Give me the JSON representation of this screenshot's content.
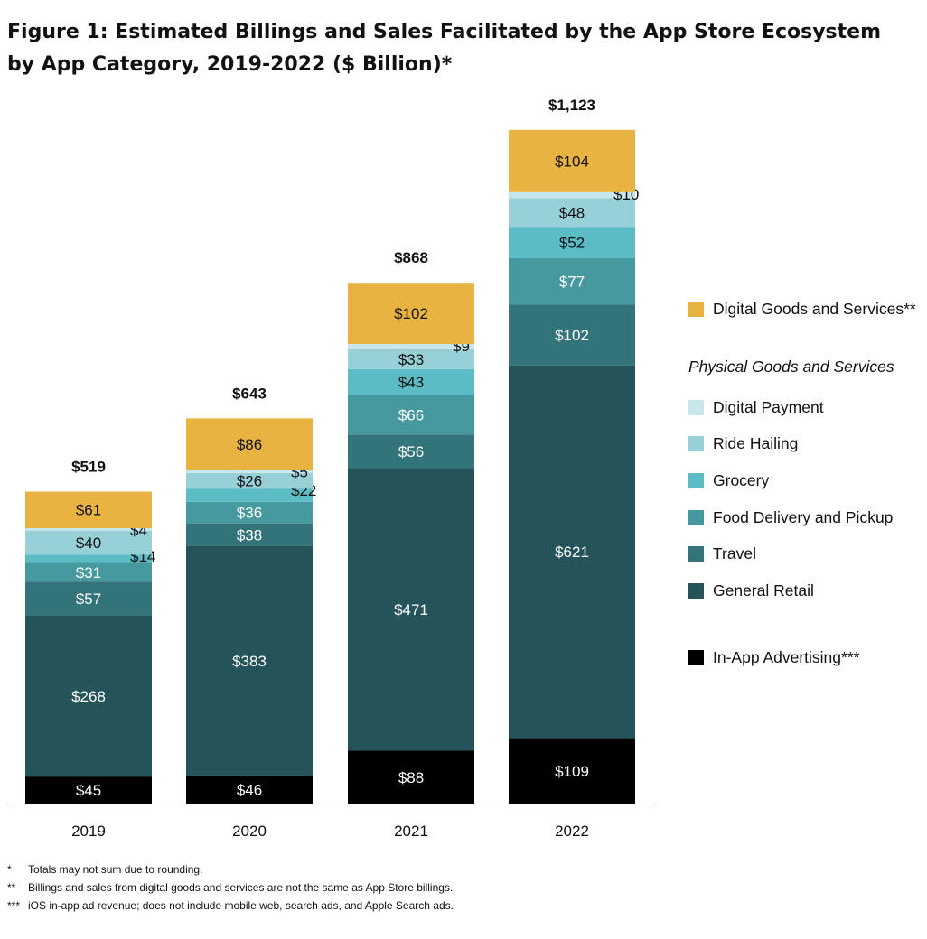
{
  "header": {
    "title": "Figure 1: Estimated Billings and Sales Facilitated by the App Store Ecosystem by App Category, 2019-2022 ($ Billion)*"
  },
  "chart_data": {
    "type": "bar",
    "stacked": true,
    "categories": [
      "2019",
      "2020",
      "2021",
      "2022"
    ],
    "totals": [
      "$519",
      "$643",
      "$868",
      "$1,123"
    ],
    "series": [
      {
        "name": "In-App Advertising***",
        "color": "#000000",
        "label_color": "#ffffff",
        "values": [
          45,
          46,
          88,
          109
        ],
        "labels": [
          "$45",
          "$46",
          "$88",
          "$109"
        ]
      },
      {
        "name": "General Retail",
        "color": "#245459",
        "label_color": "#ffffff",
        "values": [
          268,
          383,
          471,
          621
        ],
        "labels": [
          "$268",
          "$383",
          "$471",
          "$621"
        ]
      },
      {
        "name": "Travel",
        "color": "#33737a",
        "label_color": "#ffffff",
        "values": [
          57,
          38,
          56,
          102
        ],
        "labels": [
          "$57",
          "$38",
          "$56",
          "$102"
        ]
      },
      {
        "name": "Food Delivery and Pickup",
        "color": "#46999f",
        "label_color": "#ffffff",
        "values": [
          31,
          36,
          66,
          77
        ],
        "labels": [
          "$31",
          "$36",
          "$66",
          "$77"
        ]
      },
      {
        "name": "Grocery",
        "color": "#5bbcc6",
        "label_color": "#111111",
        "values": [
          14,
          22,
          43,
          52
        ],
        "labels": [
          "$14",
          "$22",
          "$43",
          "$52"
        ],
        "outside": [
          true,
          true,
          false,
          false
        ]
      },
      {
        "name": "Ride Hailing",
        "color": "#98d0d8",
        "label_color": "#111111",
        "values": [
          40,
          26,
          33,
          48
        ],
        "labels": [
          "$40",
          "$26",
          "$33",
          "$48"
        ]
      },
      {
        "name": "Digital Payment",
        "color": "#c8e7ea",
        "label_color": "#111111",
        "values": [
          4,
          5,
          9,
          10
        ],
        "labels": [
          "$4",
          "$5",
          "$9",
          "$10"
        ],
        "outside": [
          true,
          true,
          true,
          true
        ]
      },
      {
        "name": "Digital Goods and Services**",
        "color": "#e9b341",
        "label_color": "#111111",
        "values": [
          61,
          86,
          102,
          104
        ],
        "labels": [
          "$61",
          "$86",
          "$102",
          "$104"
        ]
      }
    ],
    "ylim": [
      0,
      1123
    ],
    "grid": false,
    "legend_position": "right"
  },
  "legend": {
    "heading": "Physical Goods and Services",
    "items": [
      {
        "label": "Digital Goods and Services**",
        "color": "#e9b341"
      },
      {
        "label": "Digital Payment",
        "color": "#c8e7ea"
      },
      {
        "label": "Ride Hailing",
        "color": "#98d0d8"
      },
      {
        "label": "Grocery",
        "color": "#5bbcc6"
      },
      {
        "label": "Food Delivery and Pickup",
        "color": "#46999f"
      },
      {
        "label": "Travel",
        "color": "#33737a"
      },
      {
        "label": "General Retail",
        "color": "#245459"
      },
      {
        "label": "In-App Advertising***",
        "color": "#000000"
      }
    ]
  },
  "footnotes": [
    {
      "mark": "*",
      "text": "Totals may not sum due to rounding."
    },
    {
      "mark": "**",
      "text": "Billings and sales from digital goods and services are not the same as App Store billings."
    },
    {
      "mark": "***",
      "text": "iOS in-app ad revenue; does not include mobile web, search ads, and Apple Search ads."
    }
  ]
}
